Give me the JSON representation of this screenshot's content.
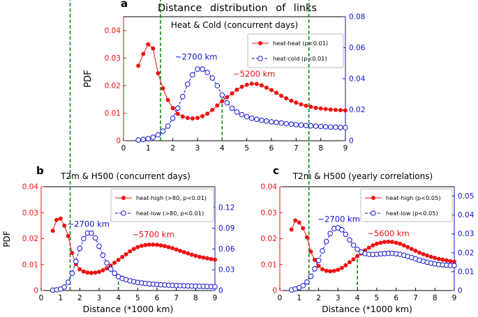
{
  "figure": {
    "title": "Distance distribution of links"
  },
  "colors": {
    "red": "#ee1111",
    "blue": "#1111cc",
    "green": "#118811",
    "axis": "#000000"
  },
  "chart_data": [
    {
      "id": "a",
      "panel_label": "a",
      "type": "line",
      "title": "Heat  &  Cold   (concurrent days)",
      "ylabel": "PDF",
      "xlabel": "",
      "xlim": [
        0,
        9
      ],
      "xticks": [
        0,
        1,
        2,
        3,
        4,
        5,
        6,
        7,
        8,
        9
      ],
      "ylim_left": [
        0,
        0.045
      ],
      "yticks_left": [
        "0",
        "0.01",
        "0.02",
        "0.03",
        "0.04"
      ],
      "ylim_right": [
        0,
        0.08
      ],
      "yticks_right": [
        "0",
        "0.02",
        "0.04",
        "0.06",
        "0.08"
      ],
      "x": [
        0.6,
        0.8,
        1.0,
        1.2,
        1.4,
        1.6,
        1.8,
        2.0,
        2.2,
        2.4,
        2.6,
        2.8,
        3.0,
        3.2,
        3.4,
        3.6,
        3.8,
        4.0,
        4.2,
        4.4,
        4.6,
        4.8,
        5.0,
        5.2,
        5.4,
        5.6,
        5.8,
        6.0,
        6.2,
        6.4,
        6.6,
        6.8,
        7.0,
        7.2,
        7.4,
        7.6,
        7.8,
        8.0,
        8.2,
        8.4,
        8.6,
        8.8,
        9.0
      ],
      "series": [
        {
          "name": "heat-heat    (p<0.01)",
          "color": "red",
          "marker": "filled",
          "axis": "left",
          "values": [
            0.0272,
            0.0315,
            0.035,
            0.0335,
            0.0245,
            0.019,
            0.0148,
            0.0118,
            0.0098,
            0.0088,
            0.0083,
            0.0081,
            0.0083,
            0.0089,
            0.0098,
            0.0112,
            0.0128,
            0.0143,
            0.0158,
            0.0172,
            0.0185,
            0.0196,
            0.0203,
            0.0207,
            0.0206,
            0.0201,
            0.0193,
            0.0184,
            0.0174,
            0.0163,
            0.0154,
            0.0145,
            0.0138,
            0.0132,
            0.0127,
            0.0123,
            0.0119,
            0.0117,
            0.0115,
            0.0113,
            0.0112,
            0.0111,
            0.011
          ]
        },
        {
          "name": "heat-cold    (p<0.01)",
          "color": "blue",
          "marker": "open",
          "axis": "right",
          "values": [
            0.0005,
            0.0008,
            0.0013,
            0.0022,
            0.0038,
            0.0062,
            0.0095,
            0.0145,
            0.021,
            0.0285,
            0.0365,
            0.0425,
            0.0462,
            0.0462,
            0.044,
            0.0405,
            0.0355,
            0.0295,
            0.0245,
            0.021,
            0.0185,
            0.0168,
            0.0155,
            0.0145,
            0.0138,
            0.0132,
            0.0127,
            0.0122,
            0.0118,
            0.0114,
            0.011,
            0.0107,
            0.0104,
            0.0101,
            0.0098,
            0.0096,
            0.0094,
            0.0092,
            0.009,
            0.0088,
            0.0087,
            0.0086,
            0.0085
          ]
        }
      ],
      "vlines": [
        {
          "x": 1.5,
          "series_index": 0
        },
        {
          "x": 4.0,
          "series_index": 1
        }
      ],
      "annotations": [
        {
          "text": "~2700 km",
          "color": "blue",
          "x": 2.95,
          "y_left": 0.0295
        },
        {
          "text": "~5200 km",
          "color": "red",
          "x": 5.3,
          "y_left": 0.0232
        }
      ]
    },
    {
      "id": "b",
      "panel_label": "b",
      "type": "line",
      "title": "T2m  &  H500   (concurrent days)",
      "ylabel": "PDF",
      "xlabel": "Distance   (*1000 km)",
      "xlim": [
        0,
        9
      ],
      "xticks": [
        0,
        1,
        2,
        3,
        4,
        5,
        6,
        7,
        8,
        9
      ],
      "ylim_left": [
        0,
        0.04
      ],
      "yticks_left": [
        "0",
        "0.01",
        "0.02",
        "0.03",
        "0.04"
      ],
      "ylim_right": [
        0,
        0.15
      ],
      "yticks_right": [
        "0",
        "0.03",
        "0.06",
        "0.09",
        "0.12"
      ],
      "x": [
        0.6,
        0.8,
        1.0,
        1.2,
        1.4,
        1.6,
        1.8,
        2.0,
        2.2,
        2.4,
        2.6,
        2.8,
        3.0,
        3.2,
        3.4,
        3.6,
        3.8,
        4.0,
        4.2,
        4.4,
        4.6,
        4.8,
        5.0,
        5.2,
        5.4,
        5.6,
        5.8,
        6.0,
        6.2,
        6.4,
        6.6,
        6.8,
        7.0,
        7.2,
        7.4,
        7.6,
        7.8,
        8.0,
        8.2,
        8.4,
        8.6,
        8.8,
        9.0
      ],
      "series": [
        {
          "name": "heat-high  (>80, p<0.01)",
          "color": "red",
          "marker": "filled",
          "axis": "left",
          "values": [
            0.023,
            0.0272,
            0.0277,
            0.025,
            0.021,
            0.0145,
            0.0102,
            0.0082,
            0.0073,
            0.0069,
            0.0068,
            0.0069,
            0.0072,
            0.0078,
            0.0086,
            0.0096,
            0.0107,
            0.0118,
            0.0129,
            0.014,
            0.0151,
            0.016,
            0.0167,
            0.0172,
            0.0175,
            0.0177,
            0.0177,
            0.0176,
            0.0174,
            0.0171,
            0.0167,
            0.0163,
            0.0158,
            0.0153,
            0.0148,
            0.0143,
            0.0138,
            0.0134,
            0.013,
            0.0127,
            0.0124,
            0.0121,
            0.0119
          ]
        },
        {
          "name": "heat-low   (>80, p<0.01)",
          "color": "blue",
          "marker": "open",
          "axis": "right",
          "values": [
            0.0005,
            0.001,
            0.002,
            0.005,
            0.012,
            0.025,
            0.042,
            0.061,
            0.075,
            0.083,
            0.083,
            0.076,
            0.064,
            0.051,
            0.04,
            0.031,
            0.025,
            0.02,
            0.0175,
            0.0155,
            0.014,
            0.0128,
            0.0118,
            0.011,
            0.0103,
            0.0097,
            0.0092,
            0.0088,
            0.0084,
            0.0081,
            0.0078,
            0.0075,
            0.0072,
            0.007,
            0.0068,
            0.0066,
            0.0064,
            0.0062,
            0.006,
            0.0059,
            0.0058,
            0.0057,
            0.0056
          ]
        }
      ],
      "vlines": [
        {
          "x": 1.5,
          "series_index": 0
        },
        {
          "x": 4.0,
          "series_index": 1
        }
      ],
      "annotations": [
        {
          "text": "~2700 km",
          "color": "blue",
          "x": 2.45,
          "y_left": 0.0245
        },
        {
          "text": "~5700 km",
          "color": "red",
          "x": 5.8,
          "y_left": 0.0205
        }
      ]
    },
    {
      "id": "c",
      "panel_label": "c",
      "type": "line",
      "title": "T2m  &  H500   (yearly correlations)",
      "ylabel": "",
      "xlabel": "Distance   (*1000 km)",
      "xlim": [
        0,
        9
      ],
      "xticks": [
        0,
        1,
        2,
        3,
        4,
        5,
        6,
        7,
        8,
        9
      ],
      "ylim_left": [
        0,
        0.04
      ],
      "yticks_left": [
        "0",
        "0.01",
        "0.02",
        "0.03",
        "0.04"
      ],
      "ylim_right": [
        0,
        0.055
      ],
      "yticks_right": [
        "0",
        "0.01",
        "0.02",
        "0.03",
        "0.04",
        "0.05"
      ],
      "x": [
        0.6,
        0.8,
        1.0,
        1.2,
        1.4,
        1.6,
        1.8,
        2.0,
        2.2,
        2.4,
        2.6,
        2.8,
        3.0,
        3.2,
        3.4,
        3.6,
        3.8,
        4.0,
        4.2,
        4.4,
        4.6,
        4.8,
        5.0,
        5.2,
        5.4,
        5.6,
        5.8,
        6.0,
        6.2,
        6.4,
        6.6,
        6.8,
        7.0,
        7.2,
        7.4,
        7.6,
        7.8,
        8.0,
        8.2,
        8.4,
        8.6,
        8.8,
        9.0
      ],
      "series": [
        {
          "name": "heat-high  (p<0.05)",
          "color": "red",
          "marker": "filled",
          "axis": "left",
          "values": [
            0.0235,
            0.027,
            0.0262,
            0.024,
            0.0205,
            0.015,
            0.0118,
            0.0095,
            0.0082,
            0.0076,
            0.0074,
            0.0076,
            0.008,
            0.0087,
            0.0097,
            0.0109,
            0.012,
            0.0132,
            0.0143,
            0.0155,
            0.0165,
            0.0174,
            0.018,
            0.0184,
            0.0187,
            0.0188,
            0.0187,
            0.0184,
            0.018,
            0.0174,
            0.0167,
            0.016,
            0.0153,
            0.0146,
            0.014,
            0.0135,
            0.013,
            0.0126,
            0.0122,
            0.0119,
            0.0116,
            0.0113,
            0.0111
          ]
        },
        {
          "name": "heat-low   (p<0.05)",
          "color": "blue",
          "marker": "open",
          "axis": "right",
          "values": [
            0.0003,
            0.0008,
            0.0015,
            0.0026,
            0.0045,
            0.0075,
            0.0115,
            0.016,
            0.021,
            0.026,
            0.0302,
            0.0328,
            0.0332,
            0.0322,
            0.0298,
            0.0268,
            0.024,
            0.0218,
            0.0204,
            0.0196,
            0.0192,
            0.0191,
            0.0192,
            0.0194,
            0.0196,
            0.0197,
            0.0197,
            0.0195,
            0.0192,
            0.0187,
            0.0181,
            0.0175,
            0.0168,
            0.0161,
            0.0155,
            0.015,
            0.0145,
            0.0141,
            0.0138,
            0.0136,
            0.0134,
            0.0133,
            0.0132
          ]
        }
      ],
      "vlines": [
        {
          "x": 1.5,
          "series_index": 0
        },
        {
          "x": 4.0,
          "series_index": 1
        }
      ],
      "annotations": [
        {
          "text": "~2700 km",
          "color": "blue",
          "x": 3.05,
          "y_left": 0.0265
        },
        {
          "text": "~5600 km",
          "color": "red",
          "x": 5.6,
          "y_left": 0.021
        }
      ]
    }
  ]
}
